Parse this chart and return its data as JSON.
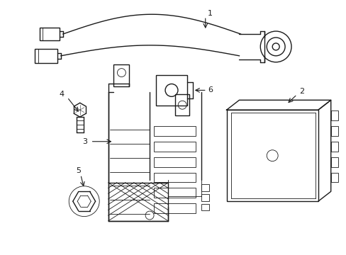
{
  "bg_color": "#ffffff",
  "line_color": "#1a1a1a",
  "lw": 1.0,
  "tlw": 0.6
}
